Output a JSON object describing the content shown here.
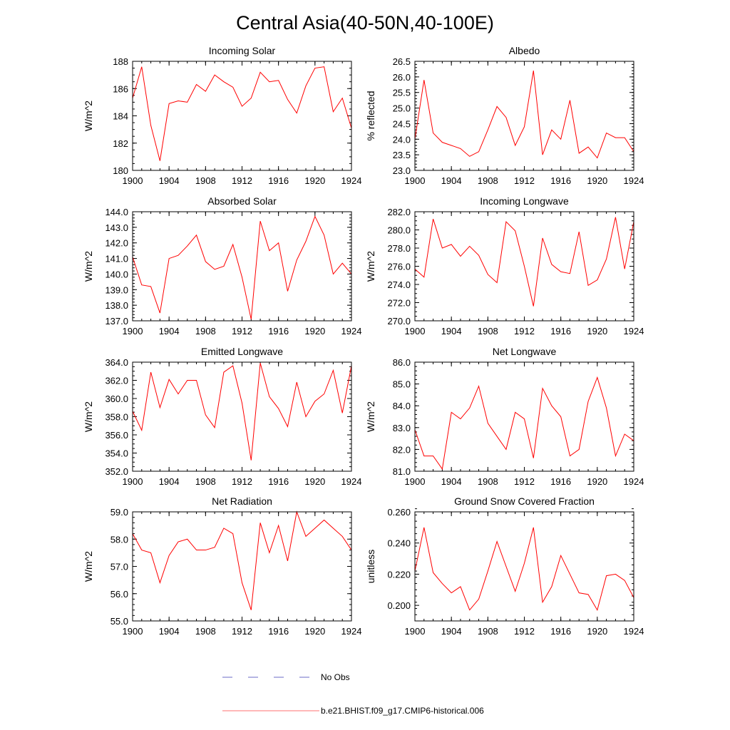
{
  "figure": {
    "title": "Central Asia(40-50N,40-100E)",
    "series_color": "#ff0000",
    "obs_color": "#6b6bc7",
    "legend": [
      {
        "label": "No Obs",
        "style": "dashed",
        "color": "#6b6bc7"
      },
      {
        "label": "b.e21.BHIST.f09_g17.CMIP6-historical.006",
        "style": "solid",
        "color": "#ff7070"
      }
    ]
  },
  "chart_data": [
    {
      "type": "line",
      "title": "Incoming Solar",
      "xlabel": "",
      "ylabel": "W/m^2",
      "xlim": [
        1900,
        1924
      ],
      "ylim": [
        180,
        188
      ],
      "xticks": [
        1900,
        1904,
        1908,
        1912,
        1916,
        1920,
        1924
      ],
      "yticks": [
        180,
        182,
        184,
        186,
        188
      ],
      "ytick_labels": [
        "180",
        "182",
        "184",
        "186",
        "188"
      ],
      "yminor_step": 0.5,
      "x": [
        1900,
        1901,
        1902,
        1903,
        1904,
        1905,
        1906,
        1907,
        1908,
        1909,
        1910,
        1911,
        1912,
        1913,
        1914,
        1915,
        1916,
        1917,
        1918,
        1919,
        1920,
        1921,
        1922,
        1923,
        1924
      ],
      "values": [
        185.3,
        187.6,
        183.3,
        180.7,
        184.9,
        185.1,
        185.0,
        186.3,
        185.8,
        187.0,
        186.5,
        186.1,
        184.7,
        185.3,
        187.2,
        186.5,
        186.6,
        185.2,
        184.2,
        186.2,
        187.5,
        187.6,
        184.3,
        185.3,
        183.1
      ]
    },
    {
      "type": "line",
      "title": "Albedo",
      "xlabel": "",
      "ylabel": "% reflected",
      "xlim": [
        1900,
        1924
      ],
      "ylim": [
        23.0,
        26.5
      ],
      "xticks": [
        1900,
        1904,
        1908,
        1912,
        1916,
        1920,
        1924
      ],
      "yticks": [
        23.0,
        23.5,
        24.0,
        24.5,
        25.0,
        25.5,
        26.0,
        26.5
      ],
      "ytick_labels": [
        "23.0",
        "23.5",
        "24.0",
        "24.5",
        "25.0",
        "25.5",
        "26.0",
        "26.5"
      ],
      "yminor_step": 0.1,
      "x": [
        1900,
        1901,
        1902,
        1903,
        1904,
        1905,
        1906,
        1907,
        1908,
        1909,
        1910,
        1911,
        1912,
        1913,
        1914,
        1915,
        1916,
        1917,
        1918,
        1919,
        1920,
        1921,
        1922,
        1923,
        1924
      ],
      "values": [
        24.0,
        25.9,
        24.2,
        23.9,
        23.8,
        23.7,
        23.45,
        23.6,
        24.3,
        25.05,
        24.7,
        23.8,
        24.4,
        26.2,
        23.5,
        24.3,
        24.0,
        25.25,
        23.55,
        23.75,
        23.4,
        24.2,
        24.05,
        24.05,
        23.6
      ]
    },
    {
      "type": "line",
      "title": "Absorbed Solar",
      "xlabel": "",
      "ylabel": "W/m^2",
      "xlim": [
        1900,
        1924
      ],
      "ylim": [
        137.0,
        144.0
      ],
      "xticks": [
        1900,
        1904,
        1908,
        1912,
        1916,
        1920,
        1924
      ],
      "yticks": [
        137,
        138,
        139,
        140,
        141,
        142,
        143,
        144
      ],
      "ytick_labels": [
        "137.0",
        "138.0",
        "139.0",
        "140.0",
        "141.0",
        "142.0",
        "143.0",
        "144.0"
      ],
      "yminor_step": 0.2,
      "x": [
        1900,
        1901,
        1902,
        1903,
        1904,
        1905,
        1906,
        1907,
        1908,
        1909,
        1910,
        1911,
        1912,
        1913,
        1914,
        1915,
        1916,
        1917,
        1918,
        1919,
        1920,
        1921,
        1922,
        1923,
        1924
      ],
      "values": [
        141.1,
        139.3,
        139.2,
        137.5,
        141.0,
        141.2,
        141.8,
        142.5,
        140.8,
        140.3,
        140.5,
        141.9,
        139.8,
        137.1,
        143.4,
        141.5,
        142.0,
        138.9,
        140.9,
        142.1,
        143.7,
        142.5,
        140.0,
        140.7,
        140.0
      ]
    },
    {
      "type": "line",
      "title": "Incoming Longwave",
      "xlabel": "",
      "ylabel": "W/m^2",
      "xlim": [
        1900,
        1924
      ],
      "ylim": [
        270.0,
        282.0
      ],
      "xticks": [
        1900,
        1904,
        1908,
        1912,
        1916,
        1920,
        1924
      ],
      "yticks": [
        270,
        272,
        274,
        276,
        278,
        280,
        282
      ],
      "ytick_labels": [
        "270.0",
        "272.0",
        "274.0",
        "276.0",
        "278.0",
        "280.0",
        "282.0"
      ],
      "yminor_step": 0.5,
      "x": [
        1900,
        1901,
        1902,
        1903,
        1904,
        1905,
        1906,
        1907,
        1908,
        1909,
        1910,
        1911,
        1912,
        1913,
        1914,
        1915,
        1916,
        1917,
        1918,
        1919,
        1920,
        1921,
        1922,
        1923,
        1924
      ],
      "values": [
        275.7,
        274.8,
        281.2,
        278.0,
        278.4,
        277.1,
        278.2,
        277.2,
        275.1,
        274.2,
        280.9,
        279.9,
        276.0,
        271.6,
        279.1,
        276.2,
        275.4,
        275.2,
        279.8,
        273.9,
        274.5,
        276.8,
        281.4,
        275.7,
        280.9
      ]
    },
    {
      "type": "line",
      "title": "Emitted Longwave",
      "xlabel": "",
      "ylabel": "W/m^2",
      "xlim": [
        1900,
        1924
      ],
      "ylim": [
        352.0,
        364.0
      ],
      "xticks": [
        1900,
        1904,
        1908,
        1912,
        1916,
        1920,
        1924
      ],
      "yticks": [
        352,
        354,
        356,
        358,
        360,
        362,
        364
      ],
      "ytick_labels": [
        "352.0",
        "354.0",
        "356.0",
        "358.0",
        "360.0",
        "362.0",
        "364.0"
      ],
      "yminor_step": 0.5,
      "x": [
        1900,
        1901,
        1902,
        1903,
        1904,
        1905,
        1906,
        1907,
        1908,
        1909,
        1910,
        1911,
        1912,
        1913,
        1914,
        1915,
        1916,
        1917,
        1918,
        1919,
        1920,
        1921,
        1922,
        1923,
        1924
      ],
      "values": [
        358.6,
        356.5,
        362.9,
        359.0,
        362.1,
        360.5,
        362.0,
        362.0,
        358.2,
        356.8,
        362.9,
        363.6,
        359.5,
        353.2,
        363.9,
        360.2,
        358.9,
        356.9,
        361.8,
        358.0,
        359.7,
        360.5,
        363.1,
        358.4,
        363.6
      ]
    },
    {
      "type": "line",
      "title": "Net Longwave",
      "xlabel": "",
      "ylabel": "W/m^2",
      "xlim": [
        1900,
        1924
      ],
      "ylim": [
        81.0,
        86.0
      ],
      "xticks": [
        1900,
        1904,
        1908,
        1912,
        1916,
        1920,
        1924
      ],
      "yticks": [
        81,
        82,
        83,
        84,
        85,
        86
      ],
      "ytick_labels": [
        "81.0",
        "82.0",
        "83.0",
        "84.0",
        "85.0",
        "86.0"
      ],
      "yminor_step": 0.2,
      "x": [
        1900,
        1901,
        1902,
        1903,
        1904,
        1905,
        1906,
        1907,
        1908,
        1909,
        1910,
        1911,
        1912,
        1913,
        1914,
        1915,
        1916,
        1917,
        1918,
        1919,
        1920,
        1921,
        1922,
        1923,
        1924
      ],
      "values": [
        82.9,
        81.7,
        81.7,
        81.1,
        83.7,
        83.4,
        83.9,
        84.9,
        83.2,
        82.6,
        82.0,
        83.7,
        83.4,
        81.6,
        84.8,
        84.0,
        83.5,
        81.7,
        82.0,
        84.2,
        85.3,
        83.9,
        81.7,
        82.7,
        82.4
      ]
    },
    {
      "type": "line",
      "title": "Net Radiation",
      "xlabel": "",
      "ylabel": "W/m^2",
      "xlim": [
        1900,
        1924
      ],
      "ylim": [
        55.0,
        59.0
      ],
      "xticks": [
        1900,
        1904,
        1908,
        1912,
        1916,
        1920,
        1924
      ],
      "yticks": [
        55,
        56,
        57,
        58,
        59
      ],
      "ytick_labels": [
        "55.0",
        "56.0",
        "57.0",
        "58.0",
        "59.0"
      ],
      "yminor_step": 0.2,
      "x": [
        1900,
        1901,
        1902,
        1903,
        1904,
        1905,
        1906,
        1907,
        1908,
        1909,
        1910,
        1911,
        1912,
        1913,
        1914,
        1915,
        1916,
        1917,
        1918,
        1919,
        1920,
        1921,
        1922,
        1923,
        1924
      ],
      "values": [
        58.2,
        57.6,
        57.5,
        56.4,
        57.4,
        57.9,
        58.0,
        57.6,
        57.6,
        57.7,
        58.4,
        58.2,
        56.4,
        55.4,
        58.6,
        57.5,
        58.5,
        57.2,
        59.0,
        58.1,
        58.4,
        58.7,
        58.4,
        58.1,
        57.6
      ]
    },
    {
      "type": "line",
      "title": "Ground Snow Covered Fraction",
      "xlabel": "",
      "ylabel": "unitless",
      "xlim": [
        1900,
        1924
      ],
      "ylim": [
        0.19,
        0.26
      ],
      "xticks": [
        1900,
        1904,
        1908,
        1912,
        1916,
        1920,
        1924
      ],
      "yticks": [
        0.2,
        0.22,
        0.24,
        0.26
      ],
      "ytick_labels": [
        "0.200",
        "0.220",
        "0.240",
        "0.260"
      ],
      "yminor_step": 0.004,
      "x": [
        1900,
        1901,
        1902,
        1903,
        1904,
        1905,
        1906,
        1907,
        1908,
        1909,
        1910,
        1911,
        1912,
        1913,
        1914,
        1915,
        1916,
        1917,
        1918,
        1919,
        1920,
        1921,
        1922,
        1923,
        1924
      ],
      "values": [
        0.222,
        0.25,
        0.221,
        0.214,
        0.208,
        0.212,
        0.197,
        0.204,
        0.222,
        0.241,
        0.225,
        0.209,
        0.227,
        0.25,
        0.202,
        0.212,
        0.232,
        0.22,
        0.208,
        0.207,
        0.197,
        0.219,
        0.22,
        0.216,
        0.205
      ]
    }
  ]
}
